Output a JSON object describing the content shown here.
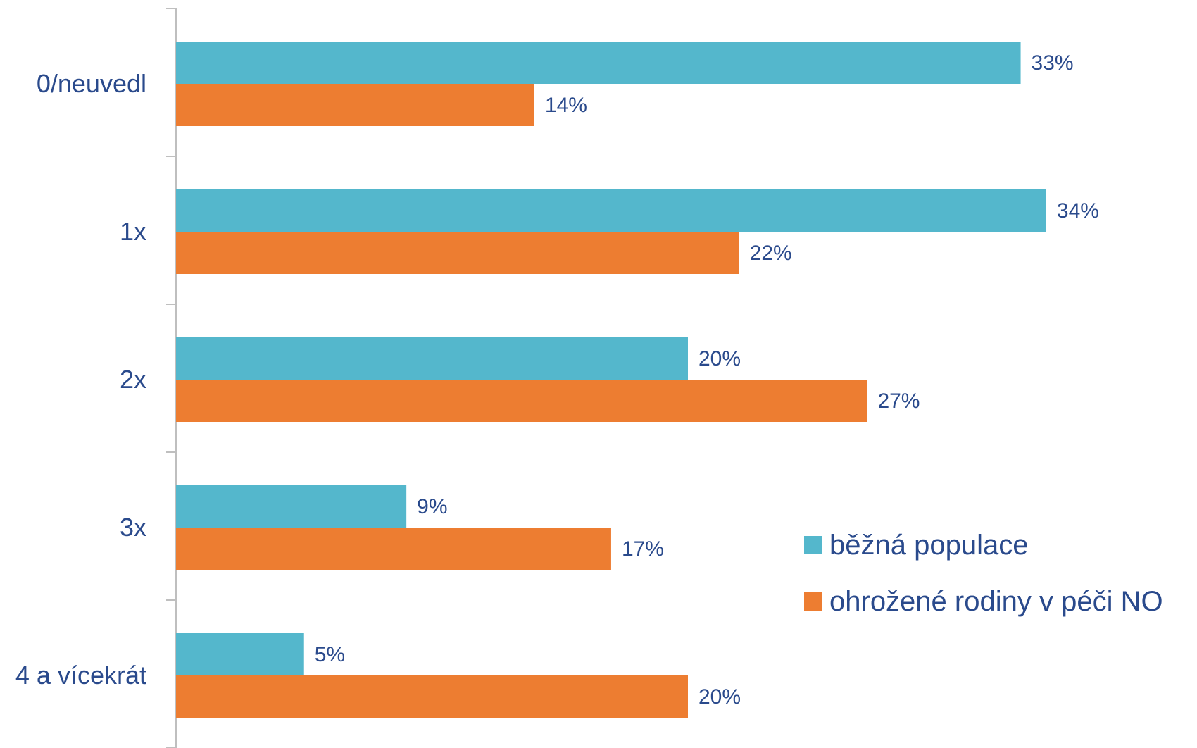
{
  "chart_data": {
    "type": "bar",
    "orientation": "horizontal",
    "categories": [
      "0/neuvedl",
      "1x",
      "2x",
      "3x",
      "4 a vícekrát"
    ],
    "series": [
      {
        "name": "běžná populace",
        "color": "#54b7cc",
        "values": [
          33,
          34,
          20,
          9,
          5
        ],
        "labels": [
          "33%",
          "34%",
          "20%",
          "9%",
          "5%"
        ]
      },
      {
        "name": "ohrožené rodiny v péči NO",
        "color": "#ed7d31",
        "values": [
          14,
          22,
          27,
          17,
          20
        ],
        "labels": [
          "14%",
          "22%",
          "27%",
          "17%",
          "20%"
        ]
      }
    ],
    "xlim": [
      0,
      40
    ],
    "unit": "%",
    "legend_position": "bottom-right",
    "grid": false
  }
}
